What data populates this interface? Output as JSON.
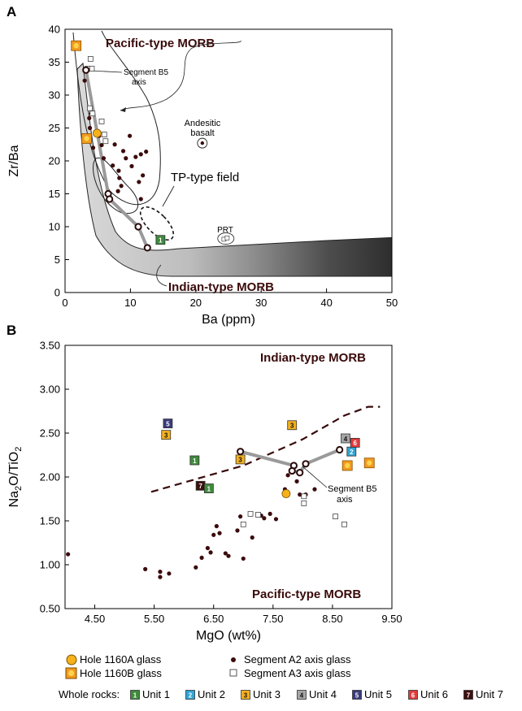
{
  "colors": {
    "hole1160A": "#f6b21a",
    "hole1160B_outer": "#f39a1e",
    "hole1160B_inner": "#ffd34d",
    "unit1": "#3f8a3d",
    "unit2": "#2fa5d6",
    "unit3": "#f2b01e",
    "unit4": "#a6a6a6",
    "unit5": "#3a3a7c",
    "unit6": "#e23b3b",
    "unit7": "#3d0f0f",
    "segment_a2": "#3b0b0b",
    "trend_line": "#9a9a9a",
    "field_label": "#3a0a0a"
  },
  "chart_data": [
    {
      "panel": "A",
      "type": "scatter",
      "xlabel": "Ba (ppm)",
      "ylabel": "Zr/Ba",
      "xlim": [
        0,
        50
      ],
      "ylim": [
        0,
        40
      ],
      "xticks": [
        "0",
        "10",
        "20",
        "30",
        "40",
        "50"
      ],
      "yticks": [
        "0",
        "5",
        "10",
        "15",
        "20",
        "25",
        "30",
        "35",
        "40"
      ],
      "labels": {
        "pacific": "Pacific-type MORB",
        "indian": "Indian-type MORB",
        "tp": "TP-type field",
        "segment_line1": "Segment B5",
        "segment_line2": "axis",
        "andesitic_line1": "Andesitic",
        "andesitic_line2": "basalt",
        "prt": "PRT"
      },
      "segment_b5_axis": [
        [
          3.2,
          33.8
        ],
        [
          6.6,
          15.0
        ],
        [
          6.8,
          14.2
        ],
        [
          11.2,
          10.0
        ],
        [
          12.6,
          6.8
        ]
      ],
      "segment_a2": [
        [
          3.0,
          32.2
        ],
        [
          3.7,
          26.5
        ],
        [
          4.0,
          27.2
        ],
        [
          3.8,
          25.0
        ],
        [
          4.3,
          22.0
        ],
        [
          5.2,
          23.8
        ],
        [
          5.6,
          22.4
        ],
        [
          5.9,
          20.4
        ],
        [
          7.3,
          19.3
        ],
        [
          7.6,
          22.5
        ],
        [
          8.2,
          18.5
        ],
        [
          8.3,
          17.4
        ],
        [
          8.6,
          16.2
        ],
        [
          8.1,
          15.4
        ],
        [
          8.9,
          21.5
        ],
        [
          9.3,
          20.4
        ],
        [
          9.9,
          23.8
        ],
        [
          10.2,
          19.2
        ],
        [
          10.8,
          20.6
        ],
        [
          11.6,
          21.0
        ],
        [
          11.3,
          16.8
        ],
        [
          12.4,
          21.4
        ],
        [
          11.9,
          17.8
        ],
        [
          11.6,
          14.2
        ]
      ],
      "segment_a3": [
        [
          3.9,
          35.5
        ],
        [
          4.1,
          34.0
        ],
        [
          3.4,
          34.0
        ],
        [
          3.8,
          28.0
        ],
        [
          4.2,
          27.2
        ],
        [
          5.6,
          26.0
        ],
        [
          6.2,
          23.0
        ],
        [
          6.0,
          24.0
        ]
      ],
      "prt": [
        [
          24.3,
          8.1
        ],
        [
          24.8,
          8.3
        ]
      ],
      "andesitic_basalt": [
        [
          21.0,
          22.7
        ]
      ],
      "hole_1160A": [
        [
          4.9,
          24.2
        ]
      ],
      "hole_1160B": [
        [
          1.7,
          37.5
        ],
        [
          3.3,
          23.4
        ]
      ],
      "whole_rocks": [
        {
          "unit": "1",
          "x": 14.6,
          "y": 8.0
        }
      ]
    },
    {
      "panel": "B",
      "type": "scatter",
      "xlabel": "MgO (wt%)",
      "ylabel": "Na2O/TiO2",
      "xlim": [
        4.0,
        9.5
      ],
      "ylim": [
        0.5,
        3.5
      ],
      "xticks": [
        "4.50",
        "5.50",
        "6.50",
        "7.50",
        "8.50",
        "9.50"
      ],
      "yticks": [
        "0.50",
        "1.00",
        "1.50",
        "2.00",
        "2.50",
        "3.00",
        "3.50"
      ],
      "labels": {
        "indian": "Indian-type MORB",
        "pacific": "Pacific-type MORB",
        "segment_line1": "Segment B5",
        "segment_line2": "axis"
      },
      "divider": [
        [
          5.45,
          1.83
        ],
        [
          7.0,
          2.13
        ],
        [
          8.0,
          2.43
        ],
        [
          8.7,
          2.7
        ],
        [
          9.1,
          2.8
        ],
        [
          9.3,
          2.8
        ]
      ],
      "segment_b5_axis": [
        [
          6.95,
          2.29
        ],
        [
          7.85,
          2.13
        ],
        [
          7.82,
          2.07
        ],
        [
          7.95,
          2.05
        ],
        [
          8.05,
          2.15
        ],
        [
          8.62,
          2.31
        ]
      ],
      "segment_a2": [
        [
          4.05,
          1.12
        ],
        [
          5.35,
          0.95
        ],
        [
          5.6,
          0.92
        ],
        [
          5.6,
          0.86
        ],
        [
          5.75,
          0.9
        ],
        [
          6.2,
          0.97
        ],
        [
          6.3,
          1.08
        ],
        [
          6.4,
          1.19
        ],
        [
          6.45,
          1.14
        ],
        [
          6.5,
          1.34
        ],
        [
          6.55,
          1.44
        ],
        [
          6.6,
          1.36
        ],
        [
          6.7,
          1.13
        ],
        [
          6.75,
          1.1
        ],
        [
          6.9,
          1.39
        ],
        [
          6.95,
          1.55
        ],
        [
          7.0,
          1.07
        ],
        [
          7.15,
          1.31
        ],
        [
          7.3,
          1.56
        ],
        [
          7.35,
          1.53
        ],
        [
          7.45,
          1.58
        ],
        [
          7.55,
          1.52
        ],
        [
          7.7,
          1.86
        ],
        [
          7.75,
          2.02
        ],
        [
          7.9,
          1.95
        ],
        [
          7.95,
          1.8
        ],
        [
          8.05,
          1.8
        ],
        [
          8.2,
          1.86
        ]
      ],
      "segment_a3": [
        [
          7.0,
          1.46
        ],
        [
          7.12,
          1.58
        ],
        [
          7.25,
          1.57
        ],
        [
          8.02,
          1.7
        ],
        [
          8.02,
          1.78
        ],
        [
          8.55,
          1.55
        ],
        [
          8.7,
          1.46
        ]
      ],
      "hole_1160A": [
        [
          7.72,
          1.81
        ]
      ],
      "hole_1160B": [
        [
          8.75,
          2.13
        ],
        [
          9.12,
          2.16
        ]
      ],
      "whole_rocks": [
        {
          "unit": "5",
          "x": 5.73,
          "y": 2.61
        },
        {
          "unit": "3",
          "x": 5.7,
          "y": 2.48
        },
        {
          "unit": "1",
          "x": 6.18,
          "y": 2.19
        },
        {
          "unit": "7",
          "x": 6.28,
          "y": 1.9
        },
        {
          "unit": "1",
          "x": 6.42,
          "y": 1.87
        },
        {
          "unit": "3",
          "x": 6.95,
          "y": 2.2
        },
        {
          "unit": "3",
          "x": 7.82,
          "y": 2.59
        },
        {
          "unit": "4",
          "x": 8.72,
          "y": 2.44
        },
        {
          "unit": "2",
          "x": 8.82,
          "y": 2.29
        },
        {
          "unit": "6",
          "x": 8.88,
          "y": 2.39
        }
      ]
    }
  ],
  "panel_labels": [
    "A",
    "B"
  ],
  "legend": {
    "hole1160A": "Hole 1160A glass",
    "hole1160B": "Hole 1160B glass",
    "segA2": "Segment A2 axis glass",
    "segA3": "Segment A3 axis glass",
    "whole_rocks_label": "Whole rocks:",
    "units": [
      {
        "num": "1",
        "label": "Unit 1"
      },
      {
        "num": "2",
        "label": "Unit 2"
      },
      {
        "num": "3",
        "label": "Unit 3"
      },
      {
        "num": "4",
        "label": "Unit 4"
      },
      {
        "num": "5",
        "label": "Unit 5"
      },
      {
        "num": "6",
        "label": "Unit 6"
      },
      {
        "num": "7",
        "label": "Unit 7"
      }
    ]
  }
}
